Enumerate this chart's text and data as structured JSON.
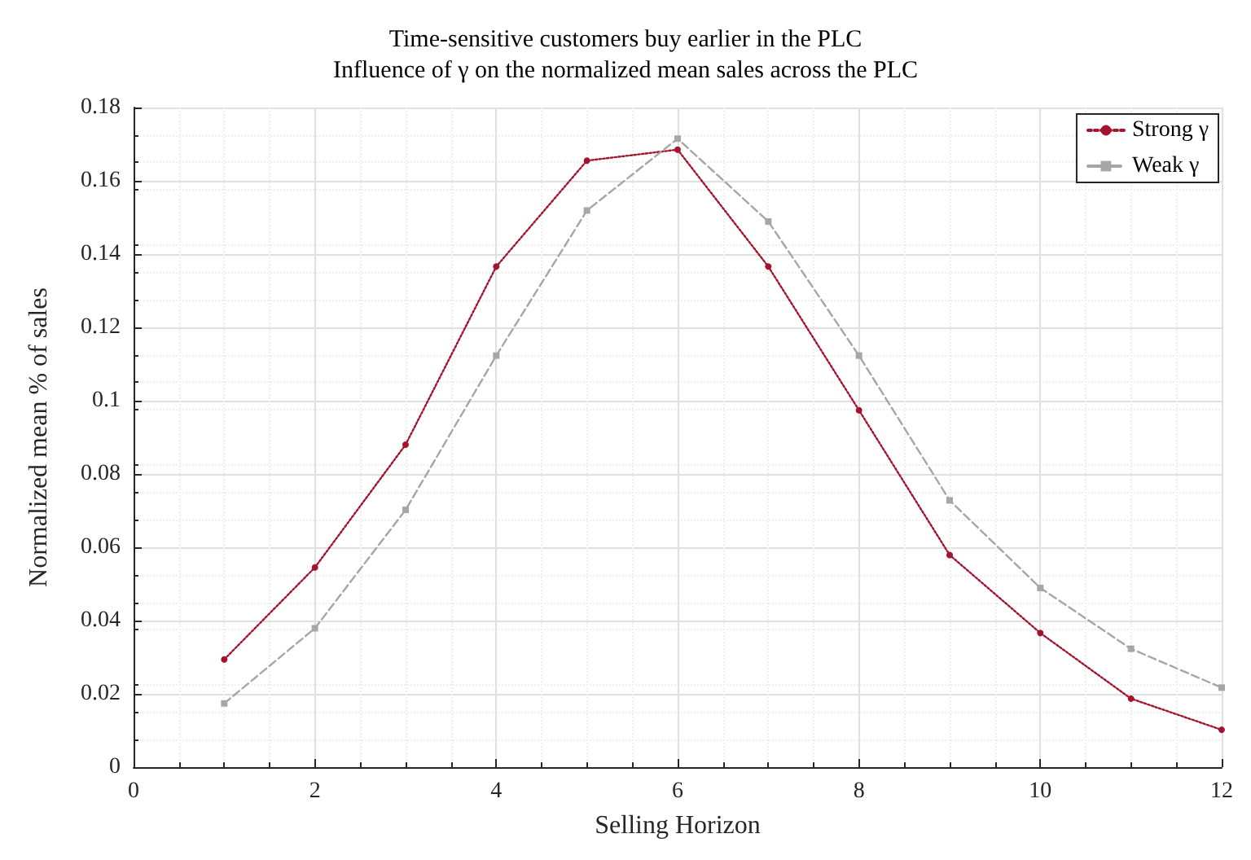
{
  "chart_data": {
    "type": "line",
    "title": "Time-sensitive customers buy earlier in the PLC",
    "subtitle": "Influence of γ on the normalized mean sales across the PLC",
    "xlabel": "Selling Horizon",
    "ylabel": "Normalized mean % of sales",
    "x": [
      1,
      2,
      3,
      4,
      5,
      6,
      7,
      8,
      9,
      10,
      11,
      12
    ],
    "series": [
      {
        "name": "Strong γ",
        "color": "#a2142f",
        "marker": "circle",
        "line_style": "dotted",
        "values": [
          0.0294,
          0.0545,
          0.088,
          0.1366,
          0.1655,
          0.1685,
          0.1366,
          0.0974,
          0.0579,
          0.0366,
          0.0187,
          0.0102
        ]
      },
      {
        "name": "Weak γ",
        "color": "#a6a6a6",
        "marker": "square",
        "line_style": "dashed",
        "values": [
          0.0174,
          0.0379,
          0.0702,
          0.1123,
          0.1519,
          0.1715,
          0.1489,
          0.1123,
          0.0728,
          0.0489,
          0.0323,
          0.0217
        ]
      }
    ],
    "xlim": [
      0,
      12
    ],
    "xticks": [
      0,
      2,
      4,
      6,
      8,
      10,
      12
    ],
    "ylim": [
      0,
      0.18
    ],
    "yticks": [
      0,
      0.02,
      0.04,
      0.06,
      0.08,
      0.1,
      0.12,
      0.14,
      0.16,
      0.18
    ],
    "grid": true,
    "legend": "top right"
  }
}
